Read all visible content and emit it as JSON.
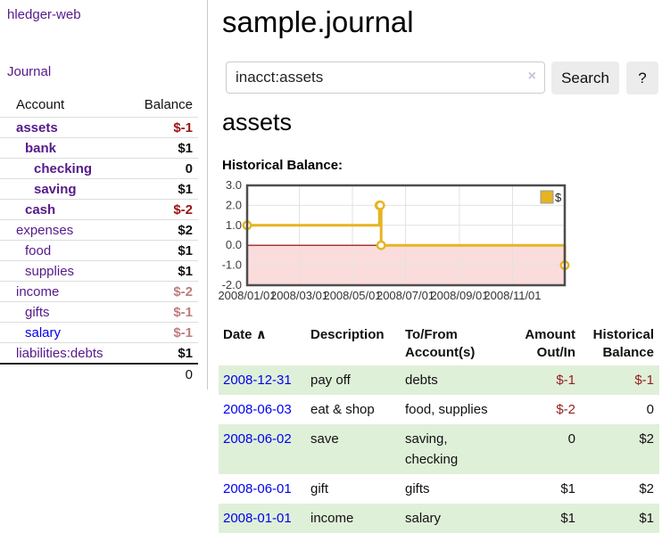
{
  "app": {
    "brand": "hledger-web"
  },
  "sidebar": {
    "journal_link": "Journal",
    "accounts": {
      "header": {
        "account": "Account",
        "balance": "Balance"
      },
      "rows": [
        {
          "name": "assets",
          "balance": "$-1"
        },
        {
          "name": "bank",
          "balance": "$1"
        },
        {
          "name": "checking",
          "balance": "0"
        },
        {
          "name": "saving",
          "balance": "$1"
        },
        {
          "name": "cash",
          "balance": "$-2"
        },
        {
          "name": "expenses",
          "balance": "$2"
        },
        {
          "name": "food",
          "balance": "$1"
        },
        {
          "name": "supplies",
          "balance": "$1"
        },
        {
          "name": "income",
          "balance": "$-2"
        },
        {
          "name": "gifts",
          "balance": "$-1"
        },
        {
          "name": "salary",
          "balance": "$-1"
        },
        {
          "name": "liabilities:debts",
          "balance": "$1"
        }
      ],
      "total": "0"
    }
  },
  "main": {
    "title": "sample.journal",
    "search": {
      "value": "inacct:assets",
      "clear_icon": "×",
      "search_button": "Search",
      "help_button": "?"
    },
    "account_heading": "assets",
    "chart_title": "Historical Balance:"
  },
  "chart_data": {
    "type": "line",
    "step": true,
    "title": "Historical Balance:",
    "legend": {
      "label": "$",
      "position": "top-right"
    },
    "series": [
      {
        "name": "$",
        "color": "#e6b422",
        "points": [
          {
            "date": "2008-01-01",
            "value": 1
          },
          {
            "date": "2008-06-01",
            "value": 2
          },
          {
            "date": "2008-06-02",
            "value": 2
          },
          {
            "date": "2008-06-03",
            "value": 0
          },
          {
            "date": "2008-12-31",
            "value": -1
          }
        ]
      }
    ],
    "x_range": [
      "2008-01-01",
      "2008-12-31"
    ],
    "x_ticks": [
      "2008/01/01",
      "2008/03/01",
      "2008/05/01",
      "2008/07/01",
      "2008/09/01",
      "2008/11/01"
    ],
    "y_ticks": [
      "3.0",
      "2.0",
      "1.0",
      "0.0",
      "-1.0",
      "-2.0"
    ],
    "ylim": [
      -2,
      3
    ],
    "grid": true,
    "negative_region_color": "#fbdcdc",
    "zero_line_color": "#8b0000"
  },
  "register": {
    "headers": {
      "date": "Date",
      "sort_icon": "∧",
      "description": "Description",
      "tofrom": "To/From Account(s)",
      "amount": "Amount Out/In",
      "balance": "Historical Balance"
    },
    "rows": [
      {
        "date": "2008-12-31",
        "description": "pay off",
        "tofrom": "debts",
        "amount": "$-1",
        "balance": "$-1"
      },
      {
        "date": "2008-06-03",
        "description": "eat & shop",
        "tofrom": "food, supplies",
        "amount": "$-2",
        "balance": "0"
      },
      {
        "date": "2008-06-02",
        "description": "save",
        "tofrom": "saving, checking",
        "amount": "0",
        "balance": "$2"
      },
      {
        "date": "2008-06-01",
        "description": "gift",
        "tofrom": "gifts",
        "amount": "$1",
        "balance": "$2"
      },
      {
        "date": "2008-01-01",
        "description": "income",
        "tofrom": "salary",
        "amount": "$1",
        "balance": "$1"
      }
    ]
  }
}
